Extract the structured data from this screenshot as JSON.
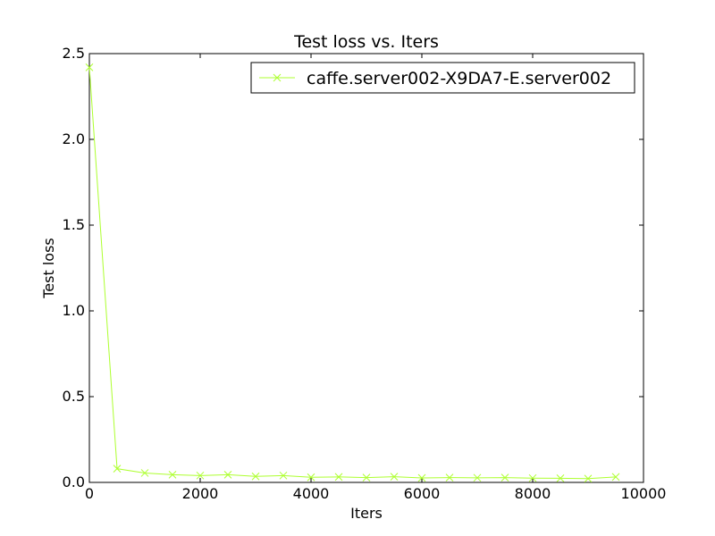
{
  "chart_data": {
    "type": "line",
    "title": "Test loss  vs. Iters",
    "xlabel": "Iters",
    "ylabel": "Test loss",
    "xlim": [
      0,
      10000
    ],
    "ylim": [
      0.0,
      2.5
    ],
    "xticks": [
      "0",
      "2000",
      "4000",
      "6000",
      "8000",
      "10000"
    ],
    "yticks": [
      "0.0",
      "0.5",
      "1.0",
      "1.5",
      "2.0",
      "2.5"
    ],
    "grid": false,
    "legend_position": "top-right",
    "series": [
      {
        "name": "caffe.server002-X9DA7-E.server002",
        "color": "#adff2f",
        "marker": "x",
        "x": [
          0,
          500,
          1000,
          1500,
          2000,
          2500,
          3000,
          3500,
          4000,
          4500,
          5000,
          5500,
          6000,
          6500,
          7000,
          7500,
          8000,
          8500,
          9000,
          9500
        ],
        "y": [
          2.42,
          0.08,
          0.055,
          0.045,
          0.04,
          0.045,
          0.035,
          0.04,
          0.03,
          0.032,
          0.028,
          0.033,
          0.026,
          0.028,
          0.027,
          0.028,
          0.025,
          0.024,
          0.022,
          0.032
        ]
      }
    ]
  }
}
